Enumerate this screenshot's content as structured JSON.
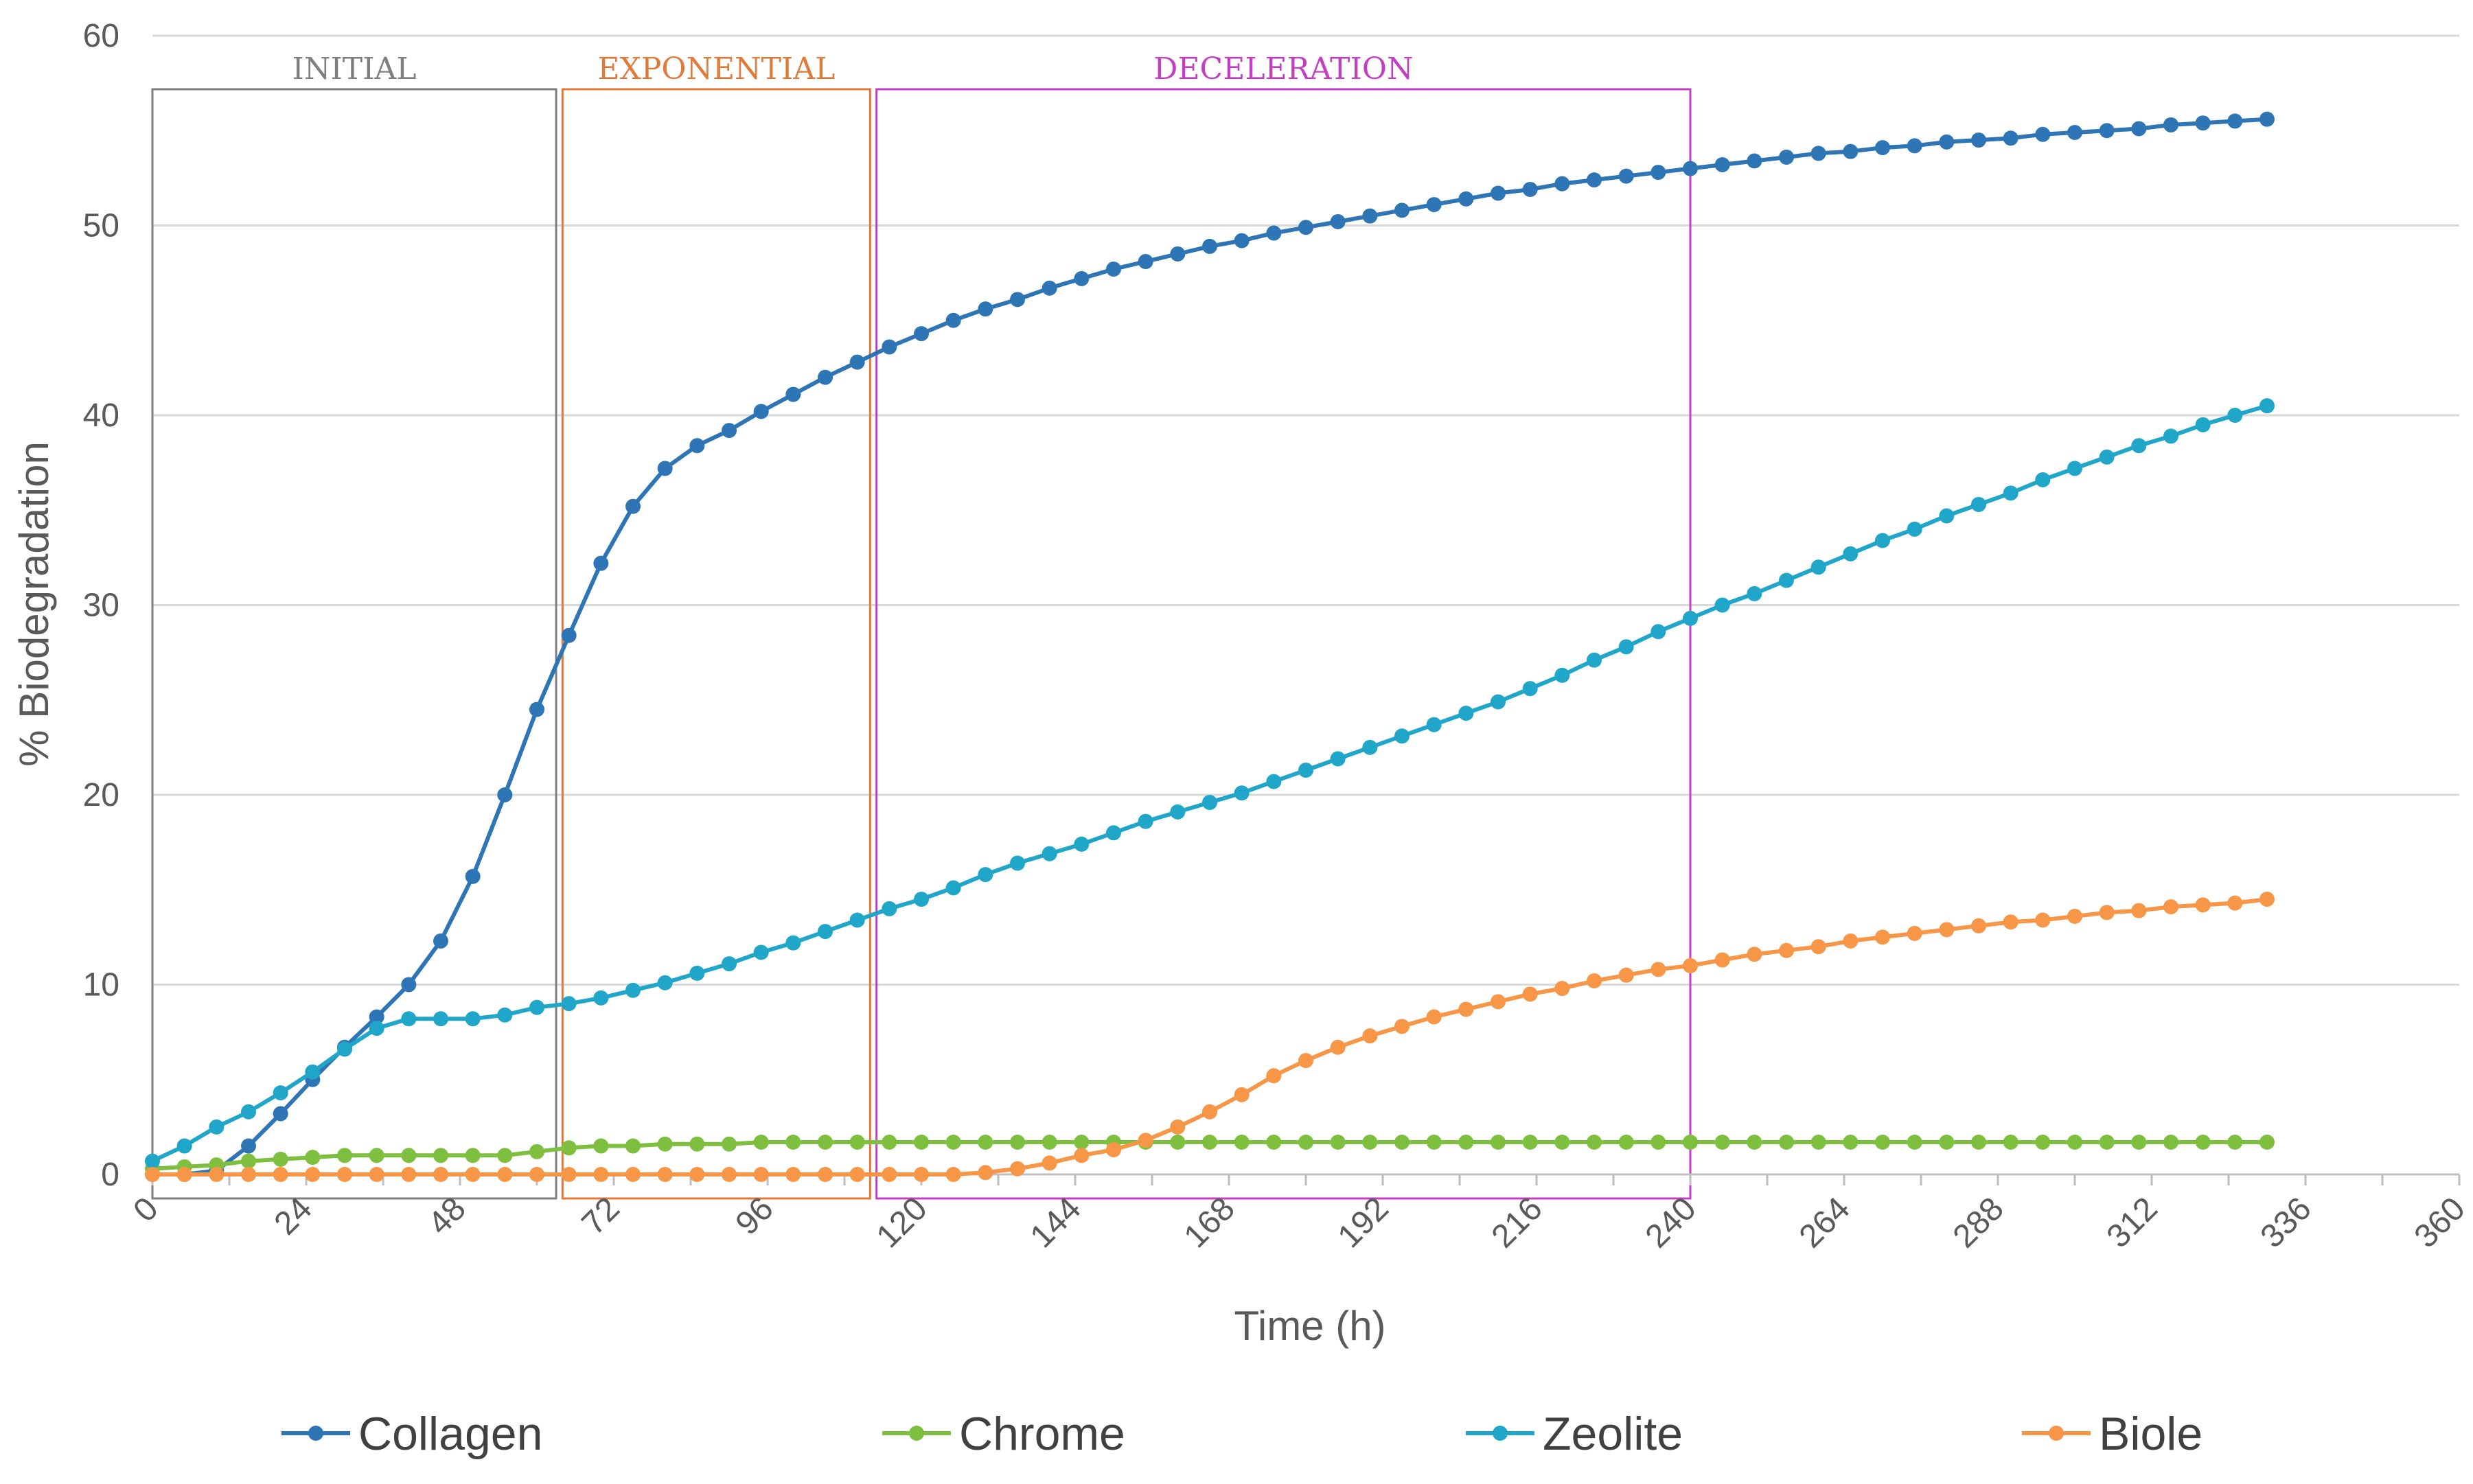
{
  "chart_data": {
    "type": "line",
    "title": "",
    "xlabel": "Time (h)",
    "ylabel": "% Biodegradation",
    "xlim": [
      0,
      360
    ],
    "ylim": [
      0,
      60
    ],
    "x_ticks": [
      "0",
      "24",
      "48",
      "72",
      "96",
      "120",
      "144",
      "168",
      "192",
      "216",
      "240",
      "264",
      "288",
      "312",
      "336",
      "360"
    ],
    "y_ticks": [
      "0",
      "10",
      "20",
      "30",
      "40",
      "50",
      "60"
    ],
    "grid": "horizontal",
    "legend_position": "bottom",
    "phases": [
      {
        "label": "INITIAL",
        "x_start": 0,
        "x_end": 63,
        "color": "#7f7f7f"
      },
      {
        "label": "EXPONENTIAL",
        "x_start": 64,
        "x_end": 112,
        "color": "#e07a3a"
      },
      {
        "label": "DECELERATION",
        "x_start": 113,
        "x_end": 240,
        "color": "#c23fc2"
      }
    ],
    "series": [
      {
        "name": "Collagen",
        "color": "#2e75b6",
        "points": [
          [
            0,
            0
          ],
          [
            5,
            0
          ],
          [
            10,
            0.2
          ],
          [
            15,
            1.5
          ],
          [
            20,
            3.2
          ],
          [
            25,
            5
          ],
          [
            30,
            6.7
          ],
          [
            35,
            8.3
          ],
          [
            40,
            10
          ],
          [
            45,
            12.3
          ],
          [
            50,
            15.7
          ],
          [
            55,
            20
          ],
          [
            60,
            24.5
          ],
          [
            65,
            28.4
          ],
          [
            70,
            32.2
          ],
          [
            75,
            35.2
          ],
          [
            80,
            37.2
          ],
          [
            85,
            38.4
          ],
          [
            90,
            39.2
          ],
          [
            95,
            40.2
          ],
          [
            100,
            41.1
          ],
          [
            105,
            42
          ],
          [
            110,
            42.8
          ],
          [
            115,
            43.6
          ],
          [
            120,
            44.3
          ],
          [
            125,
            45
          ],
          [
            130,
            45.6
          ],
          [
            135,
            46.1
          ],
          [
            140,
            46.7
          ],
          [
            145,
            47.2
          ],
          [
            150,
            47.7
          ],
          [
            155,
            48.1
          ],
          [
            160,
            48.5
          ],
          [
            165,
            48.9
          ],
          [
            170,
            49.2
          ],
          [
            175,
            49.6
          ],
          [
            180,
            49.9
          ],
          [
            185,
            50.2
          ],
          [
            190,
            50.5
          ],
          [
            195,
            50.8
          ],
          [
            200,
            51.1
          ],
          [
            205,
            51.4
          ],
          [
            210,
            51.7
          ],
          [
            215,
            51.9
          ],
          [
            220,
            52.2
          ],
          [
            225,
            52.4
          ],
          [
            230,
            52.6
          ],
          [
            235,
            52.8
          ],
          [
            240,
            53
          ],
          [
            245,
            53.2
          ],
          [
            250,
            53.4
          ],
          [
            255,
            53.6
          ],
          [
            260,
            53.8
          ],
          [
            265,
            53.9
          ],
          [
            270,
            54.1
          ],
          [
            275,
            54.2
          ],
          [
            280,
            54.4
          ],
          [
            285,
            54.5
          ],
          [
            290,
            54.6
          ],
          [
            295,
            54.8
          ],
          [
            300,
            54.9
          ],
          [
            305,
            55
          ],
          [
            310,
            55.1
          ],
          [
            315,
            55.3
          ],
          [
            320,
            55.4
          ],
          [
            325,
            55.5
          ],
          [
            330,
            55.6
          ]
        ]
      },
      {
        "name": "Chrome",
        "color": "#7fbf3f",
        "points": [
          [
            0,
            0.3
          ],
          [
            5,
            0.4
          ],
          [
            10,
            0.5
          ],
          [
            15,
            0.7
          ],
          [
            20,
            0.8
          ],
          [
            25,
            0.9
          ],
          [
            30,
            1
          ],
          [
            35,
            1
          ],
          [
            40,
            1
          ],
          [
            45,
            1
          ],
          [
            50,
            1
          ],
          [
            55,
            1
          ],
          [
            60,
            1.2
          ],
          [
            65,
            1.4
          ],
          [
            70,
            1.5
          ],
          [
            75,
            1.5
          ],
          [
            80,
            1.6
          ],
          [
            85,
            1.6
          ],
          [
            90,
            1.6
          ],
          [
            95,
            1.7
          ],
          [
            100,
            1.7
          ],
          [
            105,
            1.7
          ],
          [
            110,
            1.7
          ],
          [
            115,
            1.7
          ],
          [
            120,
            1.7
          ],
          [
            125,
            1.7
          ],
          [
            130,
            1.7
          ],
          [
            135,
            1.7
          ],
          [
            140,
            1.7
          ],
          [
            145,
            1.7
          ],
          [
            150,
            1.7
          ],
          [
            155,
            1.7
          ],
          [
            160,
            1.7
          ],
          [
            165,
            1.7
          ],
          [
            170,
            1.7
          ],
          [
            175,
            1.7
          ],
          [
            180,
            1.7
          ],
          [
            185,
            1.7
          ],
          [
            190,
            1.7
          ],
          [
            195,
            1.7
          ],
          [
            200,
            1.7
          ],
          [
            205,
            1.7
          ],
          [
            210,
            1.7
          ],
          [
            215,
            1.7
          ],
          [
            220,
            1.7
          ],
          [
            225,
            1.7
          ],
          [
            230,
            1.7
          ],
          [
            235,
            1.7
          ],
          [
            240,
            1.7
          ],
          [
            245,
            1.7
          ],
          [
            250,
            1.7
          ],
          [
            255,
            1.7
          ],
          [
            260,
            1.7
          ],
          [
            265,
            1.7
          ],
          [
            270,
            1.7
          ],
          [
            275,
            1.7
          ],
          [
            280,
            1.7
          ],
          [
            285,
            1.7
          ],
          [
            290,
            1.7
          ],
          [
            295,
            1.7
          ],
          [
            300,
            1.7
          ],
          [
            305,
            1.7
          ],
          [
            310,
            1.7
          ],
          [
            315,
            1.7
          ],
          [
            320,
            1.7
          ],
          [
            325,
            1.7
          ],
          [
            330,
            1.7
          ]
        ]
      },
      {
        "name": "Zeolite",
        "color": "#1fa6c8",
        "points": [
          [
            0,
            0.7
          ],
          [
            5,
            1.5
          ],
          [
            10,
            2.5
          ],
          [
            15,
            3.3
          ],
          [
            20,
            4.3
          ],
          [
            25,
            5.4
          ],
          [
            30,
            6.6
          ],
          [
            35,
            7.7
          ],
          [
            40,
            8.2
          ],
          [
            45,
            8.2
          ],
          [
            50,
            8.2
          ],
          [
            55,
            8.4
          ],
          [
            60,
            8.8
          ],
          [
            65,
            9
          ],
          [
            70,
            9.3
          ],
          [
            75,
            9.7
          ],
          [
            80,
            10.1
          ],
          [
            85,
            10.6
          ],
          [
            90,
            11.1
          ],
          [
            95,
            11.7
          ],
          [
            100,
            12.2
          ],
          [
            105,
            12.8
          ],
          [
            110,
            13.4
          ],
          [
            115,
            14
          ],
          [
            120,
            14.5
          ],
          [
            125,
            15.1
          ],
          [
            130,
            15.8
          ],
          [
            135,
            16.4
          ],
          [
            140,
            16.9
          ],
          [
            145,
            17.4
          ],
          [
            150,
            18
          ],
          [
            155,
            18.6
          ],
          [
            160,
            19.1
          ],
          [
            165,
            19.6
          ],
          [
            170,
            20.1
          ],
          [
            175,
            20.7
          ],
          [
            180,
            21.3
          ],
          [
            185,
            21.9
          ],
          [
            190,
            22.5
          ],
          [
            195,
            23.1
          ],
          [
            200,
            23.7
          ],
          [
            205,
            24.3
          ],
          [
            210,
            24.9
          ],
          [
            215,
            25.6
          ],
          [
            220,
            26.3
          ],
          [
            225,
            27.1
          ],
          [
            230,
            27.8
          ],
          [
            235,
            28.6
          ],
          [
            240,
            29.3
          ],
          [
            245,
            30
          ],
          [
            250,
            30.6
          ],
          [
            255,
            31.3
          ],
          [
            260,
            32
          ],
          [
            265,
            32.7
          ],
          [
            270,
            33.4
          ],
          [
            275,
            34
          ],
          [
            280,
            34.7
          ],
          [
            285,
            35.3
          ],
          [
            290,
            35.9
          ],
          [
            295,
            36.6
          ],
          [
            300,
            37.2
          ],
          [
            305,
            37.8
          ],
          [
            310,
            38.4
          ],
          [
            315,
            38.9
          ],
          [
            320,
            39.5
          ],
          [
            325,
            40
          ],
          [
            330,
            40.5
          ]
        ]
      },
      {
        "name": "Biole",
        "color": "#f79646",
        "points": [
          [
            0,
            0
          ],
          [
            5,
            0
          ],
          [
            10,
            0
          ],
          [
            15,
            0
          ],
          [
            20,
            0
          ],
          [
            25,
            0
          ],
          [
            30,
            0
          ],
          [
            35,
            0
          ],
          [
            40,
            0
          ],
          [
            45,
            0
          ],
          [
            50,
            0
          ],
          [
            55,
            0
          ],
          [
            60,
            0
          ],
          [
            65,
            0
          ],
          [
            70,
            0
          ],
          [
            75,
            0
          ],
          [
            80,
            0
          ],
          [
            85,
            0
          ],
          [
            90,
            0
          ],
          [
            95,
            0
          ],
          [
            100,
            0
          ],
          [
            105,
            0
          ],
          [
            110,
            0
          ],
          [
            115,
            0
          ],
          [
            120,
            0
          ],
          [
            125,
            0
          ],
          [
            130,
            0.1
          ],
          [
            135,
            0.3
          ],
          [
            140,
            0.6
          ],
          [
            145,
            1
          ],
          [
            150,
            1.3
          ],
          [
            155,
            1.8
          ],
          [
            160,
            2.5
          ],
          [
            165,
            3.3
          ],
          [
            170,
            4.2
          ],
          [
            175,
            5.2
          ],
          [
            180,
            6
          ],
          [
            185,
            6.7
          ],
          [
            190,
            7.3
          ],
          [
            195,
            7.8
          ],
          [
            200,
            8.3
          ],
          [
            205,
            8.7
          ],
          [
            210,
            9.1
          ],
          [
            215,
            9.5
          ],
          [
            220,
            9.8
          ],
          [
            225,
            10.2
          ],
          [
            230,
            10.5
          ],
          [
            235,
            10.8
          ],
          [
            240,
            11
          ],
          [
            245,
            11.3
          ],
          [
            250,
            11.6
          ],
          [
            255,
            11.8
          ],
          [
            260,
            12
          ],
          [
            265,
            12.3
          ],
          [
            270,
            12.5
          ],
          [
            275,
            12.7
          ],
          [
            280,
            12.9
          ],
          [
            285,
            13.1
          ],
          [
            290,
            13.3
          ],
          [
            295,
            13.4
          ],
          [
            300,
            13.6
          ],
          [
            305,
            13.8
          ],
          [
            310,
            13.9
          ],
          [
            315,
            14.1
          ],
          [
            320,
            14.2
          ],
          [
            325,
            14.3
          ],
          [
            330,
            14.5
          ]
        ]
      }
    ]
  }
}
